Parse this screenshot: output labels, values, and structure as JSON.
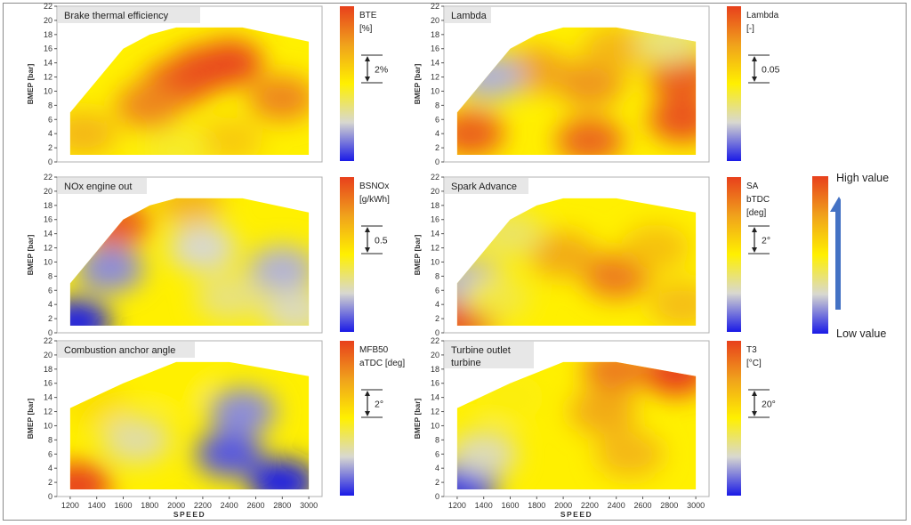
{
  "chart_data": [
    {
      "type": "heatmap",
      "title": "Brake thermal efficiency",
      "xlabel": "SPEED",
      "ylabel": "BMEP [bar]",
      "xlim": [
        1100,
        3100
      ],
      "ylim": [
        0,
        22
      ],
      "x_ticks": [
        1200,
        1400,
        1600,
        1800,
        2000,
        2200,
        2400,
        2600,
        2800,
        3000
      ],
      "y_ticks": [
        0,
        2,
        4,
        6,
        8,
        10,
        12,
        14,
        16,
        18,
        20,
        22
      ],
      "show_x_ticks": false,
      "colorbar": {
        "variable": "BTE",
        "unit": "[%]",
        "scale_step": "2%"
      },
      "envelope": [
        [
          1200,
          1
        ],
        [
          1200,
          7
        ],
        [
          1600,
          16
        ],
        [
          1800,
          18
        ],
        [
          2000,
          19
        ],
        [
          2500,
          19
        ],
        [
          3000,
          17
        ],
        [
          3000,
          1
        ]
      ],
      "hotspots": [
        {
          "speed": 2200,
          "bmep": 13,
          "level": 1.0
        },
        {
          "speed": 2400,
          "bmep": 14,
          "level": 0.98
        },
        {
          "speed": 2000,
          "bmep": 11,
          "level": 0.95
        },
        {
          "speed": 1800,
          "bmep": 8,
          "level": 0.82
        },
        {
          "speed": 2800,
          "bmep": 9,
          "level": 0.82
        },
        {
          "speed": 1300,
          "bmep": 4,
          "level": 0.68
        },
        {
          "speed": 2400,
          "bmep": 3,
          "level": 0.62
        },
        {
          "speed": 2000,
          "bmep": 1.5,
          "level": 0.45
        }
      ]
    },
    {
      "type": "heatmap",
      "title": "Lambda",
      "xlabel": "SPEED",
      "ylabel": "BMEP [bar]",
      "xlim": [
        1100,
        3100
      ],
      "ylim": [
        0,
        22
      ],
      "x_ticks": [
        1200,
        1400,
        1600,
        1800,
        2000,
        2200,
        2400,
        2600,
        2800,
        3000
      ],
      "y_ticks": [
        0,
        2,
        4,
        6,
        8,
        10,
        12,
        14,
        16,
        18,
        20,
        22
      ],
      "show_x_ticks": false,
      "colorbar": {
        "variable": "Lambda",
        "unit": "[-]",
        "scale_step": "0.05"
      },
      "envelope": [
        [
          1200,
          1
        ],
        [
          1200,
          7
        ],
        [
          1600,
          16
        ],
        [
          1800,
          18
        ],
        [
          2000,
          19
        ],
        [
          2400,
          19
        ],
        [
          3000,
          17
        ],
        [
          3000,
          1
        ]
      ],
      "hotspots": [
        {
          "speed": 1300,
          "bmep": 4,
          "level": 0.92
        },
        {
          "speed": 2900,
          "bmep": 6,
          "level": 0.95
        },
        {
          "speed": 2900,
          "bmep": 12,
          "level": 0.92
        },
        {
          "speed": 2200,
          "bmep": 3,
          "level": 0.9
        },
        {
          "speed": 2200,
          "bmep": 11,
          "level": 0.78
        },
        {
          "speed": 1800,
          "bmep": 13,
          "level": 0.74
        },
        {
          "speed": 2400,
          "bmep": 16,
          "level": 0.68
        },
        {
          "speed": 1450,
          "bmep": 12,
          "level": 0.2
        },
        {
          "speed": 2800,
          "bmep": 17,
          "level": 0.35
        }
      ]
    },
    {
      "type": "heatmap",
      "title": "NOx engine out",
      "xlabel": "SPEED",
      "ylabel": "BMEP [bar]",
      "xlim": [
        1100,
        3100
      ],
      "ylim": [
        0,
        22
      ],
      "x_ticks": [
        1200,
        1400,
        1600,
        1800,
        2000,
        2200,
        2400,
        2600,
        2800,
        3000
      ],
      "y_ticks": [
        0,
        2,
        4,
        6,
        8,
        10,
        12,
        14,
        16,
        18,
        20,
        22
      ],
      "show_x_ticks": false,
      "colorbar": {
        "variable": "BSNOx",
        "unit": "[g/kWh]",
        "scale_step": "0.5"
      },
      "envelope": [
        [
          1200,
          1
        ],
        [
          1200,
          7
        ],
        [
          1600,
          16
        ],
        [
          1800,
          18
        ],
        [
          2000,
          19
        ],
        [
          2500,
          19
        ],
        [
          3000,
          17
        ],
        [
          3000,
          1
        ]
      ],
      "hotspots": [
        {
          "speed": 1550,
          "bmep": 15.5,
          "level": 0.92
        },
        {
          "speed": 2100,
          "bmep": 18.6,
          "level": 0.68
        },
        {
          "speed": 1250,
          "bmep": 1.5,
          "level": 0.0
        },
        {
          "speed": 1500,
          "bmep": 9,
          "level": 0.15
        },
        {
          "speed": 2800,
          "bmep": 9,
          "level": 0.2
        },
        {
          "speed": 2200,
          "bmep": 12,
          "level": 0.25
        },
        {
          "speed": 2400,
          "bmep": 5,
          "level": 0.35
        },
        {
          "speed": 2900,
          "bmep": 3,
          "level": 0.28
        }
      ]
    },
    {
      "type": "heatmap",
      "title": "Spark Advance",
      "xlabel": "SPEED",
      "ylabel": "BMEP [bar]",
      "xlim": [
        1100,
        3100
      ],
      "ylim": [
        0,
        22
      ],
      "x_ticks": [
        1200,
        1400,
        1600,
        1800,
        2000,
        2200,
        2400,
        2600,
        2800,
        3000
      ],
      "y_ticks": [
        0,
        2,
        4,
        6,
        8,
        10,
        12,
        14,
        16,
        18,
        20,
        22
      ],
      "show_x_ticks": false,
      "colorbar": {
        "variable": "SA",
        "unit": "bTDC\n[deg]",
        "scale_step": "2°"
      },
      "envelope": [
        [
          1200,
          1
        ],
        [
          1200,
          7
        ],
        [
          1600,
          16
        ],
        [
          1800,
          18
        ],
        [
          2000,
          19
        ],
        [
          2400,
          19
        ],
        [
          3000,
          17
        ],
        [
          3000,
          1
        ]
      ],
      "hotspots": [
        {
          "speed": 1250,
          "bmep": 2,
          "level": 1.0
        },
        {
          "speed": 2400,
          "bmep": 8,
          "level": 0.85
        },
        {
          "speed": 2000,
          "bmep": 11,
          "level": 0.72
        },
        {
          "speed": 2700,
          "bmep": 12,
          "level": 0.65
        },
        {
          "speed": 2900,
          "bmep": 4,
          "level": 0.66
        },
        {
          "speed": 1300,
          "bmep": 7,
          "level": 0.2
        },
        {
          "speed": 1600,
          "bmep": 14,
          "level": 0.38
        },
        {
          "speed": 1500,
          "bmep": 5,
          "level": 0.42
        }
      ]
    },
    {
      "type": "heatmap",
      "title": "Combustion anchor angle",
      "xlabel": "SPEED",
      "ylabel": "BMEP [bar]",
      "xlim": [
        1100,
        3100
      ],
      "ylim": [
        0,
        22
      ],
      "x_ticks": [
        1200,
        1400,
        1600,
        1800,
        2000,
        2200,
        2400,
        2600,
        2800,
        3000
      ],
      "y_ticks": [
        0,
        2,
        4,
        6,
        8,
        10,
        12,
        14,
        16,
        18,
        20,
        22
      ],
      "show_x_ticks": true,
      "colorbar": {
        "variable": "MFB50",
        "unit": "aTDC [deg]",
        "scale_step": "2°"
      },
      "envelope": [
        [
          1200,
          1
        ],
        [
          1200,
          12.5
        ],
        [
          1600,
          16
        ],
        [
          2000,
          19
        ],
        [
          2400,
          19
        ],
        [
          3000,
          17
        ],
        [
          3000,
          1
        ]
      ],
      "hotspots": [
        {
          "speed": 1250,
          "bmep": 1.5,
          "level": 1.0
        },
        {
          "speed": 1400,
          "bmep": 13,
          "level": 0.55
        },
        {
          "speed": 2000,
          "bmep": 16,
          "level": 0.5
        },
        {
          "speed": 2800,
          "bmep": 2,
          "level": 0.0
        },
        {
          "speed": 2400,
          "bmep": 6,
          "level": 0.08
        },
        {
          "speed": 2500,
          "bmep": 12,
          "level": 0.15
        },
        {
          "speed": 1700,
          "bmep": 8,
          "level": 0.3
        }
      ]
    },
    {
      "type": "heatmap",
      "title": "Turbine outlet\nturbine",
      "xlabel": "SPEED",
      "ylabel": "BMEP [bar]",
      "xlim": [
        1100,
        3100
      ],
      "ylim": [
        0,
        22
      ],
      "x_ticks": [
        1200,
        1400,
        1600,
        1800,
        2000,
        2200,
        2400,
        2600,
        2800,
        3000
      ],
      "y_ticks": [
        0,
        2,
        4,
        6,
        8,
        10,
        12,
        14,
        16,
        18,
        20,
        22
      ],
      "show_x_ticks": true,
      "colorbar": {
        "variable": "T3",
        "unit": "[°C]",
        "scale_step": "20°"
      },
      "envelope": [
        [
          1200,
          1
        ],
        [
          1200,
          12.5
        ],
        [
          1600,
          16
        ],
        [
          2000,
          19
        ],
        [
          2400,
          19
        ],
        [
          3000,
          17
        ],
        [
          3000,
          1
        ]
      ],
      "hotspots": [
        {
          "speed": 2850,
          "bmep": 17.5,
          "level": 1.0
        },
        {
          "speed": 2400,
          "bmep": 18,
          "level": 0.85
        },
        {
          "speed": 2300,
          "bmep": 12,
          "level": 0.72
        },
        {
          "speed": 2500,
          "bmep": 6,
          "level": 0.68
        },
        {
          "speed": 1250,
          "bmep": 1.5,
          "level": 0.0
        },
        {
          "speed": 1400,
          "bmep": 6,
          "level": 0.28
        },
        {
          "speed": 1600,
          "bmep": 14,
          "level": 0.48
        }
      ]
    }
  ],
  "legend": {
    "high_label": "High value",
    "low_label": "Low value",
    "colors": {
      "high": "#e8401c",
      "mid_high": "#f0a21c",
      "mid": "#fff000",
      "neutral": "#d8d8d0",
      "low": "#1a1ae6"
    },
    "arrow_color": "#4472c4"
  }
}
